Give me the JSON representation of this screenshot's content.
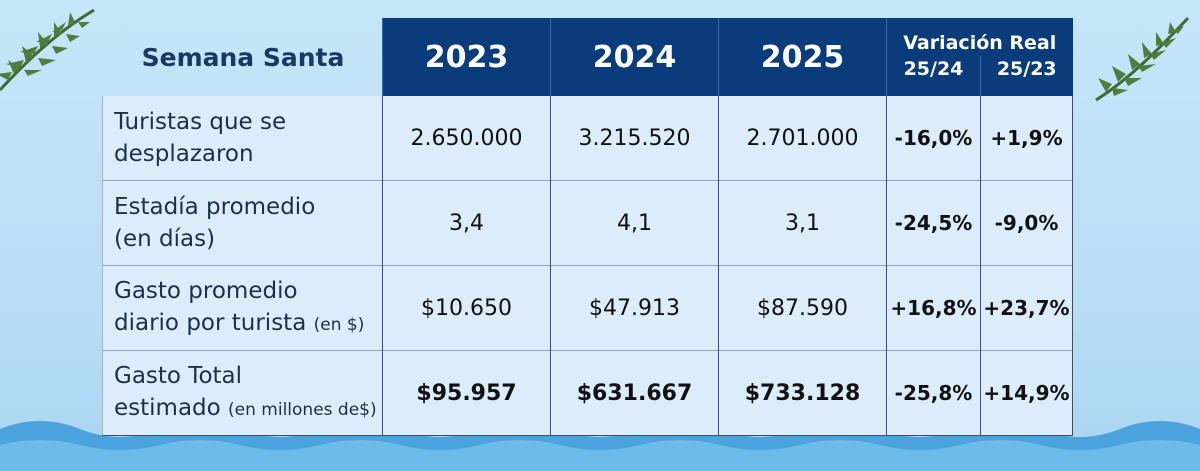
{
  "chart_data": {
    "type": "table",
    "title": "Semana Santa",
    "header": {
      "years": [
        "2023",
        "2024",
        "2025"
      ],
      "variation_label": "Variación Real",
      "variation_sub": [
        "25/24",
        "25/23"
      ]
    },
    "rows": [
      {
        "label_line1": "Turistas que se",
        "label_line2": "desplazaron",
        "label_small": "",
        "values": [
          "2.650.000",
          "3.215.520",
          "2.701.000"
        ],
        "var_25_24": "-16,0%",
        "var_25_23": "+1,9%"
      },
      {
        "label_line1": "Estadía promedio",
        "label_line2": "(en días)",
        "label_small": "",
        "values": [
          "3,4",
          "4,1",
          "3,1"
        ],
        "var_25_24": "-24,5%",
        "var_25_23": "-9,0%"
      },
      {
        "label_line1": "Gasto promedio",
        "label_line2": "diario por turista",
        "label_small": "(en $)",
        "values": [
          "$10.650",
          "$47.913",
          "$87.590"
        ],
        "var_25_24": "+16,8%",
        "var_25_23": "+23,7%"
      },
      {
        "label_line1": "Gasto Total",
        "label_line2": "estimado",
        "label_small": "(en millones de$)",
        "values": [
          "$95.957",
          "$631.667",
          "$733.128"
        ],
        "var_25_24": "-25,8%",
        "var_25_23": "+14,9%"
      }
    ]
  },
  "colors": {
    "header": "#0a3b7a",
    "cell": "#dcecfb",
    "background": "#bde0f7",
    "wave": "#4aa3dc"
  },
  "decor": {
    "left_icon": "palm-leaf-icon",
    "right_icon": "palm-leaf-icon",
    "bottom": "waves"
  }
}
